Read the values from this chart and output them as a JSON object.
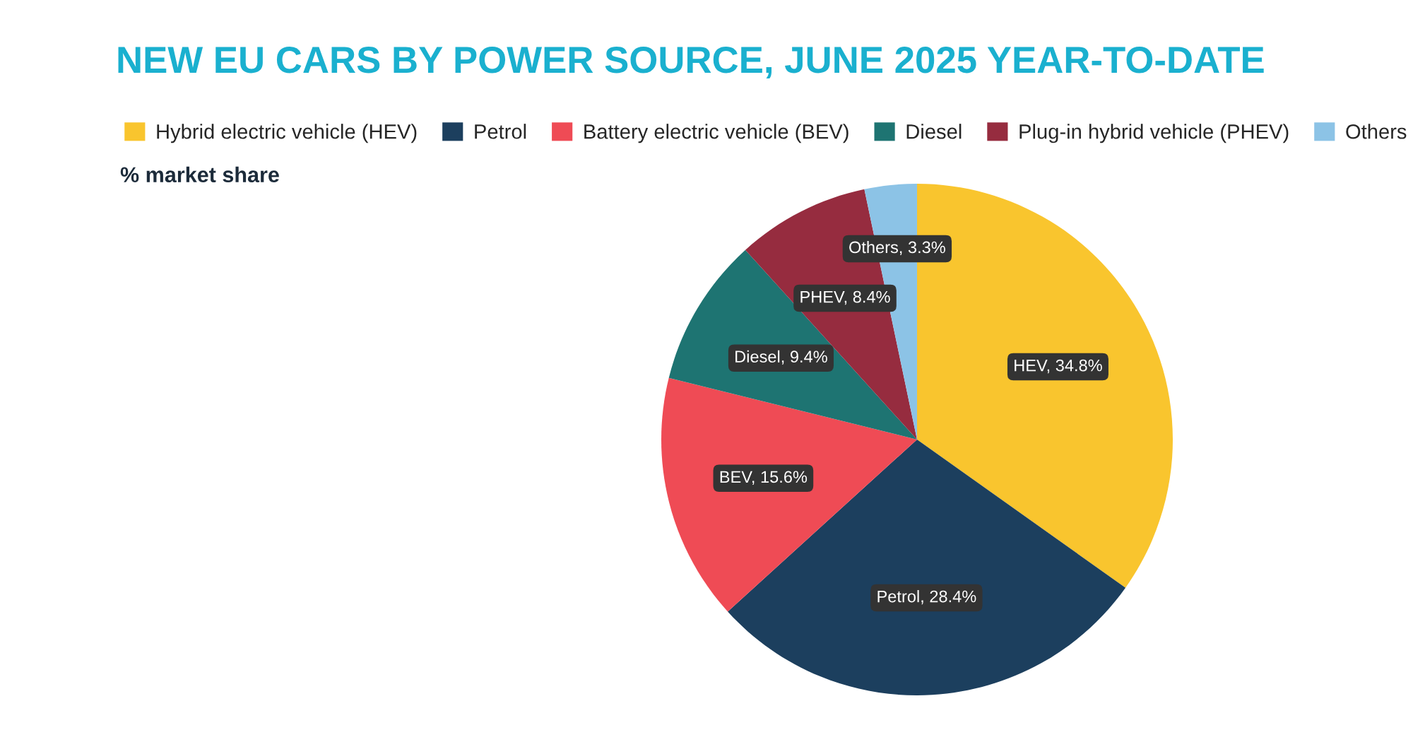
{
  "chart_data": {
    "type": "pie",
    "title": "NEW EU CARS BY POWER SOURCE, JUNE 2025 YEAR-TO-DATE",
    "subtitle": "% market share",
    "categories": [
      "Hybrid electric vehicle (HEV)",
      "Petrol",
      "Battery electric vehicle (BEV)",
      "Diesel",
      "Plug-in hybrid vehicle (PHEV)",
      "Others"
    ],
    "values": [
      34.8,
      28.4,
      15.6,
      9.4,
      8.4,
      3.3
    ],
    "colors": [
      "#f9c52e",
      "#1c3f5e",
      "#ef4b55",
      "#1e7472",
      "#962c3f",
      "#8cc3e6"
    ],
    "value_labels": [
      "HEV, 34.8%",
      "Petrol, 28.4%",
      "BEV, 15.6%",
      "Diesel, 9.4%",
      "PHEV, 8.4%",
      "Others, 3.3%"
    ],
    "legend": "top left"
  }
}
